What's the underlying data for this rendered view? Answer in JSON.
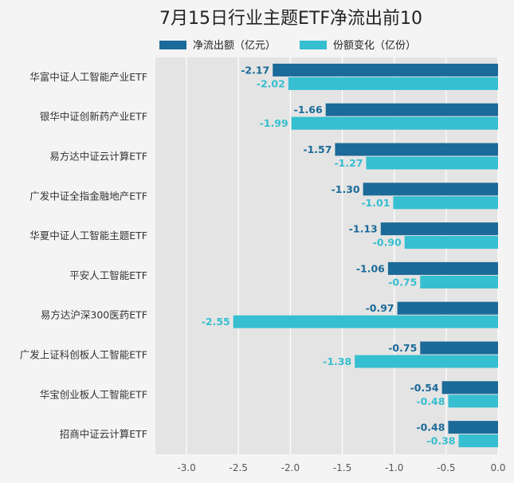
{
  "chart_data": {
    "type": "bar",
    "orientation": "horizontal",
    "title": "7月15日行业主题ETF净流出前10",
    "categories": [
      "华富中证人工智能产业ETF",
      "银华中证创新药产业ETF",
      "易方达中证云计算ETF",
      "广发中证全指金融地产ETF",
      "华夏中证人工智能主题ETF",
      "平安人工智能ETF",
      "易方达沪深300医药ETF",
      "广发上证科创板人工智能ETF",
      "华宝创业板人工智能ETF",
      "招商中证云计算ETF"
    ],
    "series": [
      {
        "name": "净流出额（亿元）",
        "color": "#1b6a99",
        "values": [
          -2.17,
          -1.66,
          -1.57,
          -1.3,
          -1.13,
          -1.06,
          -0.97,
          -0.75,
          -0.54,
          -0.48
        ],
        "labels": [
          "-2.17",
          "-1.66",
          "-1.57",
          "-1.30",
          "-1.13",
          "-1.06",
          "-0.97",
          "-0.75",
          "-0.54",
          "-0.48"
        ]
      },
      {
        "name": "份额变化（亿份）",
        "color": "#35bfd0",
        "values": [
          -2.02,
          -1.99,
          -1.27,
          -1.01,
          -0.9,
          -0.75,
          -2.55,
          -1.38,
          -0.48,
          -0.38
        ],
        "labels": [
          "-2.02",
          "-1.99",
          "-1.27",
          "-1.01",
          "-0.90",
          "-0.75",
          "-2.55",
          "-1.38",
          "-0.48",
          "-0.38"
        ]
      }
    ],
    "xlim": [
      -3.3,
      0
    ],
    "xticks": [
      -3.0,
      -2.5,
      -2.0,
      -1.5,
      -1.0,
      -0.5,
      0.0
    ],
    "xtick_labels": [
      "-3.0",
      "-2.5",
      "-2.0",
      "-1.5",
      "-1.0",
      "-0.5",
      "0.0"
    ],
    "grid": true,
    "legend": "top-center"
  }
}
